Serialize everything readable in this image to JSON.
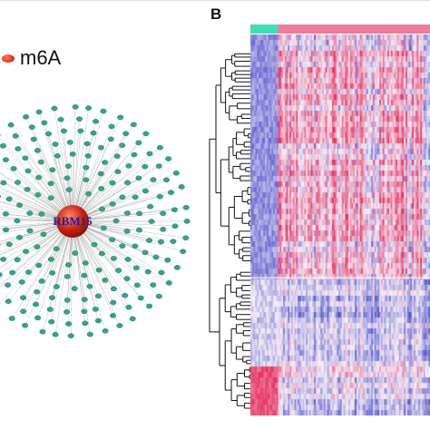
{
  "figure": {
    "panel_b_label": "B"
  },
  "network": {
    "legend_label": "m6A",
    "legend_color": "#e0280f",
    "hub_label": "RBM15",
    "hub_color": "#c8220e",
    "hub_label_color": "#2020a0",
    "node_color": "#2fa58c",
    "edge_color": "#9a9a9a"
  },
  "heatmap": {
    "group_colors": [
      "#40e0b0",
      "#f07c9c"
    ],
    "palette": {
      "low": "#4848c8",
      "mid": "#f4f0f8",
      "high": "#e83060"
    },
    "dendrogram_color": "#111111"
  }
}
